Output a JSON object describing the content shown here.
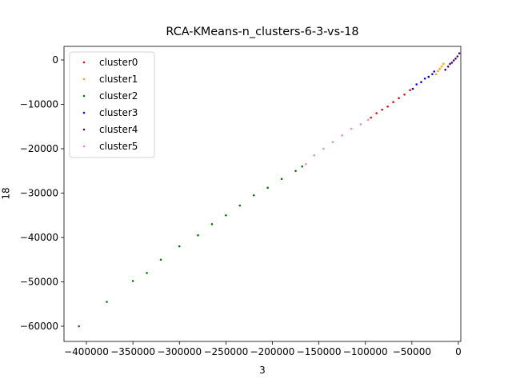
{
  "chart_data": {
    "type": "scatter",
    "title": "RCA-KMeans-n_clusters-6-3-vs-18",
    "xlabel": "3",
    "ylabel": "18",
    "xlim": [
      -424100,
      2600
    ],
    "ylim": [
      -63420,
      3060
    ],
    "xticks": [
      {
        "value": -400000,
        "label": "−400000"
      },
      {
        "value": -350000,
        "label": "−350000"
      },
      {
        "value": -300000,
        "label": "−300000"
      },
      {
        "value": -250000,
        "label": "−250000"
      },
      {
        "value": -200000,
        "label": "−200000"
      },
      {
        "value": -150000,
        "label": "−150000"
      },
      {
        "value": -100000,
        "label": "−100000"
      },
      {
        "value": -50000,
        "label": "−50000"
      },
      0
    ],
    "yticks": [
      {
        "value": -60000,
        "label": "−60000"
      },
      {
        "value": -50000,
        "label": "−50000"
      },
      {
        "value": -40000,
        "label": "−40000"
      },
      {
        "value": -30000,
        "label": "−30000"
      },
      {
        "value": -20000,
        "label": "−20000"
      },
      {
        "value": -10000,
        "label": "−10000"
      },
      0
    ],
    "legend": "upper left",
    "series": [
      {
        "name": "cluster0",
        "color": "#ff0000",
        "x": [
          -94000,
          -88000,
          -82000,
          -76000,
          -70000,
          -64000,
          -58000,
          -52000
        ],
        "values": [
          -13000,
          -12000,
          -11200,
          -10500,
          -9500,
          -8600,
          -7800,
          -6800
        ]
      },
      {
        "name": "cluster1",
        "color": "#ffa500",
        "x": [
          -24000,
          -22000,
          -20000,
          -18000,
          -16000
        ],
        "values": [
          -3200,
          -2500,
          -2000,
          -1500,
          -900
        ]
      },
      {
        "name": "cluster2",
        "color": "#008000",
        "x": [
          -408000,
          -378000,
          -350000,
          -335000,
          -320000,
          -300000,
          -280000,
          -265000,
          -250000,
          -235000,
          -220000,
          -205000,
          -190000,
          -175000,
          -168000
        ],
        "values": [
          -60000,
          -54500,
          -49800,
          -48000,
          -45000,
          -42000,
          -39500,
          -37000,
          -35000,
          -32800,
          -30500,
          -28800,
          -26800,
          -25000,
          -24000
        ]
      },
      {
        "name": "cluster3",
        "color": "#0000ff",
        "x": [
          -49000,
          -45000,
          -40000,
          -36000,
          -32000,
          -28000,
          -26000
        ],
        "values": [
          -6500,
          -5500,
          -5000,
          -4200,
          -3800,
          -3200,
          -2600
        ]
      },
      {
        "name": "cluster4",
        "color": "#4b0082",
        "x": [
          -14000,
          -11000,
          -9000,
          -7000,
          -5000,
          -3000,
          -1000,
          1000
        ],
        "values": [
          -2200,
          -1500,
          -900,
          -600,
          -100,
          300,
          800,
          1500
        ]
      },
      {
        "name": "cluster5",
        "color": "#ee82ee",
        "x": [
          -164000,
          -155000,
          -145000,
          -135000,
          -125000,
          -115000,
          -105000,
          -97000
        ],
        "values": [
          -23500,
          -21500,
          -20000,
          -18500,
          -17000,
          -15500,
          -14500,
          -13500
        ]
      }
    ]
  }
}
